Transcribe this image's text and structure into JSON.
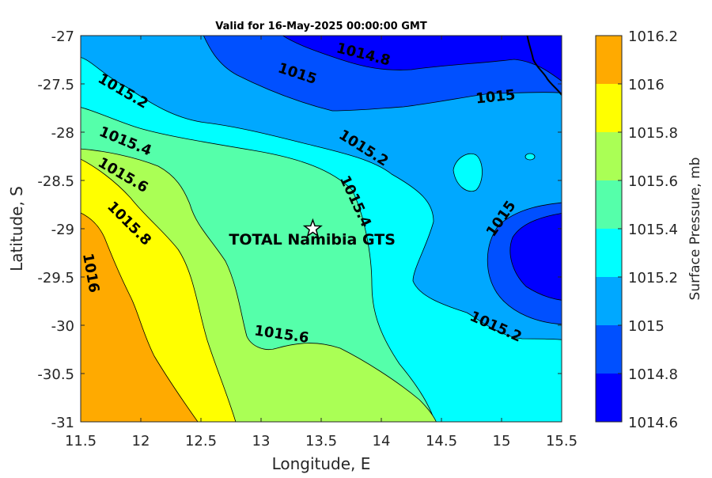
{
  "chart_data": {
    "type": "contour",
    "title": "Valid for 16-May-2025 00:00:00 GMT",
    "xlabel": "Longitude, E",
    "ylabel": "Latitude, S",
    "xlim": [
      11.5,
      15.5
    ],
    "ylim": [
      -31,
      -27
    ],
    "xticks": [
      "11.5",
      "12",
      "12.5",
      "13",
      "13.5",
      "14",
      "14.5",
      "15",
      "15.5"
    ],
    "yticks": [
      "-27",
      "-27.5",
      "-28",
      "-28.5",
      "-29",
      "-29.5",
      "-30",
      "-30.5",
      "-31"
    ],
    "colorbar": {
      "label": "Surface Pressure, mb",
      "levels": [
        1014.6,
        1014.8,
        1015,
        1015.2,
        1015.4,
        1015.6,
        1015.8,
        1016,
        1016.2
      ],
      "tick_labels": [
        "1014.6",
        "1014.8",
        "1015",
        "1015.2",
        "1015.4",
        "1015.6",
        "1015.8",
        "1016",
        "1016.2"
      ],
      "colors": [
        "#0000ff",
        "#0050ff",
        "#00a8ff",
        "#00ffff",
        "#55ffaa",
        "#aaff55",
        "#ffff00",
        "#ffaa00",
        "#ff5500"
      ]
    },
    "contour_labels": [
      {
        "text": "1014.8",
        "lon": 13.85,
        "lat": -27.2,
        "angle": 14
      },
      {
        "text": "1015",
        "lon": 13.3,
        "lat": -27.4,
        "angle": 18
      },
      {
        "text": "1015",
        "lon": 14.95,
        "lat": -27.64,
        "angle": -6
      },
      {
        "text": "1015",
        "lon": 15.0,
        "lat": -28.9,
        "angle": -55
      },
      {
        "text": "1015.2",
        "lon": 11.85,
        "lat": -27.58,
        "angle": 30
      },
      {
        "text": "1015.2",
        "lon": 13.85,
        "lat": -28.17,
        "angle": 32
      },
      {
        "text": "1015.2",
        "lon": 14.95,
        "lat": -30.02,
        "angle": 24
      },
      {
        "text": "1015.4",
        "lon": 11.87,
        "lat": -28.1,
        "angle": 22
      },
      {
        "text": "1015.4",
        "lon": 13.78,
        "lat": -28.72,
        "angle": 65
      },
      {
        "text": "1015.6",
        "lon": 11.85,
        "lat": -28.45,
        "angle": 30
      },
      {
        "text": "1015.6",
        "lon": 13.17,
        "lat": -30.1,
        "angle": 8
      },
      {
        "text": "1015.8",
        "lon": 11.9,
        "lat": -28.95,
        "angle": 45
      },
      {
        "text": "1016",
        "lon": 11.58,
        "lat": -29.46,
        "angle": 80
      }
    ],
    "marker": {
      "label": "TOTAL Namibia GTS",
      "lon": 13.43,
      "lat": -29.0,
      "symbol": "star"
    }
  }
}
